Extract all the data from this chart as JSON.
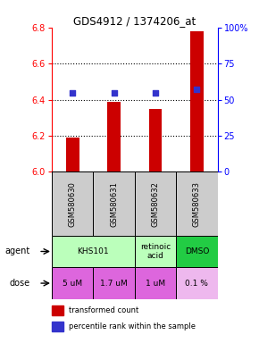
{
  "title": "GDS4912 / 1374206_at",
  "samples": [
    "GSM580630",
    "GSM580631",
    "GSM580632",
    "GSM580633"
  ],
  "bar_values": [
    6.19,
    6.39,
    6.35,
    6.78
  ],
  "bar_bottom": 6.0,
  "percentile_values": [
    55,
    55,
    55,
    57
  ],
  "percentile_scale": [
    0,
    25,
    50,
    75,
    100
  ],
  "ylim": [
    6.0,
    6.8
  ],
  "yticks": [
    6.0,
    6.2,
    6.4,
    6.6,
    6.8
  ],
  "bar_color": "#cc0000",
  "percentile_color": "#3333cc",
  "agent_row": [
    {
      "label": "KHS101",
      "span": 2,
      "color": "#bbffbb"
    },
    {
      "label": "retinoic\nacid",
      "span": 1,
      "color": "#bbffbb"
    },
    {
      "label": "DMSO",
      "span": 1,
      "color": "#22cc44"
    }
  ],
  "dose_row": [
    {
      "label": "5 uM",
      "color": "#dd66dd"
    },
    {
      "label": "1.7 uM",
      "color": "#dd66dd"
    },
    {
      "label": "1 uM",
      "color": "#dd66dd"
    },
    {
      "label": "0.1 %",
      "color": "#eeb8ee"
    }
  ],
  "legend_bar_label": "transformed count",
  "legend_dot_label": "percentile rank within the sample",
  "agent_label": "agent",
  "dose_label": "dose",
  "sample_bg_color": "#cccccc",
  "dotted_grid_values": [
    6.2,
    6.4,
    6.6
  ]
}
